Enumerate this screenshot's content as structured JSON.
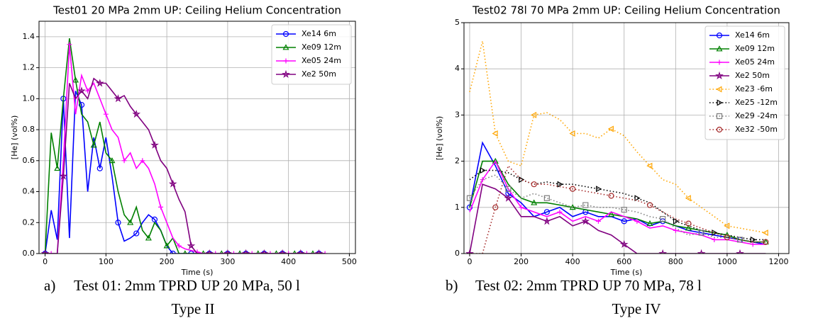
{
  "chart_data": [
    {
      "type": "line",
      "title": "Test01 20 MPa 2mm UP: Ceiling Helium Concentration",
      "x_label": "Time (s)",
      "y_label": "[He] (vol%)",
      "x": [
        0,
        10,
        20,
        30,
        40,
        50,
        60,
        70,
        80,
        90,
        100,
        110,
        120,
        130,
        140,
        150,
        160,
        170,
        180,
        190,
        200,
        210,
        220,
        230,
        240,
        250,
        260,
        270,
        280,
        290,
        300,
        310,
        320,
        330,
        340,
        350,
        360,
        370,
        380,
        390,
        400,
        410,
        420,
        430,
        440,
        450,
        460
      ],
      "series": [
        {
          "name": "Xe14 6m",
          "color": "#0000ff",
          "marker": "o",
          "linestyle": "solid",
          "values": [
            0,
            0.28,
            0.09,
            1.0,
            0.1,
            1.05,
            0.96,
            0.4,
            0.75,
            0.55,
            0.75,
            0.5,
            0.2,
            0.08,
            0.1,
            0.13,
            0.2,
            0.25,
            0.22,
            0.15,
            0.05,
            0,
            0,
            0,
            0,
            0,
            0,
            0,
            0,
            0,
            0,
            0,
            0,
            0,
            0,
            0,
            0,
            0,
            0,
            0,
            0,
            0,
            0,
            0,
            0,
            0,
            0
          ]
        },
        {
          "name": "Xe09 12m",
          "color": "#008000",
          "marker": "^",
          "linestyle": "solid",
          "values": [
            0,
            0.78,
            0.55,
            1.0,
            1.39,
            1.12,
            0.9,
            0.85,
            0.7,
            0.85,
            0.65,
            0.6,
            0.4,
            0.25,
            0.2,
            0.3,
            0.15,
            0.1,
            0.2,
            0.15,
            0.05,
            0.1,
            0,
            0,
            0,
            0,
            0,
            0,
            0,
            0,
            0,
            0,
            0,
            0,
            0,
            0,
            0,
            0,
            0,
            0,
            0,
            0,
            0,
            0,
            0,
            0,
            0
          ]
        },
        {
          "name": "Xe05 24m",
          "color": "#ff00ff",
          "marker": "+",
          "linestyle": "solid",
          "values": [
            0,
            0,
            0,
            0.6,
            1.35,
            0.9,
            1.15,
            1.05,
            1.1,
            1.0,
            0.9,
            0.8,
            0.75,
            0.6,
            0.65,
            0.55,
            0.6,
            0.55,
            0.45,
            0.3,
            0.2,
            0.1,
            0.05,
            0.03,
            0.02,
            0.01,
            0,
            0,
            0,
            0,
            0,
            0,
            0,
            0,
            0,
            0,
            0,
            0,
            0,
            0,
            0,
            0,
            0,
            0,
            0,
            0,
            0
          ]
        },
        {
          "name": "Xe2 50m",
          "color": "#800080",
          "marker": "*",
          "linestyle": "solid",
          "values": [
            0,
            0,
            0,
            0.5,
            1.1,
            1.0,
            1.05,
            1.0,
            1.13,
            1.1,
            1.1,
            1.05,
            1.0,
            1.02,
            0.95,
            0.9,
            0.85,
            0.8,
            0.7,
            0.6,
            0.55,
            0.45,
            0.35,
            0.27,
            0.05,
            0,
            0,
            0,
            0,
            0,
            0,
            0,
            0,
            0,
            0,
            0,
            0,
            0,
            0,
            0,
            0,
            0,
            0,
            0,
            0,
            0,
            0
          ]
        }
      ],
      "xlim": [
        -10,
        510
      ],
      "ylim": [
        0,
        1.5
      ],
      "xticks": [
        0,
        100,
        200,
        300,
        400,
        500
      ],
      "yticks": [
        {
          "value": 0,
          "label": "0.0"
        },
        {
          "value": 0.2,
          "label": "0.2"
        },
        {
          "value": 0.4,
          "label": "0.4"
        },
        {
          "value": 0.6,
          "label": "0.6"
        },
        {
          "value": 0.8,
          "label": "0.8"
        },
        {
          "value": 1.0,
          "label": "1.0"
        },
        {
          "value": 1.2,
          "label": "1.2"
        },
        {
          "value": 1.4,
          "label": "1.4"
        }
      ],
      "grid": true,
      "legend": "upper right",
      "caption": {
        "marker": "a)",
        "lines": [
          "Test 01: 2mm TPRD UP 20 MPa, 50 l",
          "Type II"
        ]
      }
    },
    {
      "type": "line",
      "title": "Test02 78l 70 MPa 2mm UP: Ceiling Helium Concentration",
      "x_label": "Time (s)",
      "y_label": "[He] (vol%)",
      "x": [
        0,
        50,
        100,
        150,
        200,
        250,
        300,
        350,
        400,
        450,
        500,
        550,
        600,
        650,
        700,
        750,
        800,
        850,
        900,
        950,
        1000,
        1050,
        1100,
        1150
      ],
      "series": [
        {
          "name": "Xe14 6m",
          "color": "#0000ff",
          "marker": "o",
          "linestyle": "solid",
          "values": [
            1.0,
            2.4,
            1.9,
            1.3,
            1.1,
            0.8,
            0.9,
            1.0,
            0.8,
            0.9,
            0.8,
            0.8,
            0.7,
            0.75,
            0.6,
            0.7,
            0.6,
            0.5,
            0.45,
            0.4,
            0.35,
            0.3,
            0.25,
            0.2
          ]
        },
        {
          "name": "Xe09 12m",
          "color": "#008000",
          "marker": "^",
          "linestyle": "solid",
          "values": [
            1.0,
            2.0,
            2.0,
            1.5,
            1.2,
            1.1,
            1.1,
            1.05,
            1.0,
            0.95,
            0.9,
            0.85,
            0.8,
            0.75,
            0.65,
            0.7,
            0.6,
            0.55,
            0.5,
            0.45,
            0.4,
            0.3,
            0.25,
            0.25
          ]
        },
        {
          "name": "Xe05 24m",
          "color": "#ff00ff",
          "marker": "+",
          "linestyle": "solid",
          "values": [
            0.9,
            1.6,
            2.0,
            1.4,
            1.0,
            0.9,
            0.8,
            0.9,
            0.7,
            0.8,
            0.7,
            0.9,
            0.8,
            0.7,
            0.55,
            0.6,
            0.5,
            0.45,
            0.4,
            0.3,
            0.3,
            0.25,
            0.2,
            0.2
          ]
        },
        {
          "name": "Xe2 50m",
          "color": "#800080",
          "marker": "*",
          "linestyle": "solid",
          "values": [
            0,
            1.5,
            1.4,
            1.2,
            0.8,
            0.8,
            0.7,
            0.8,
            0.6,
            0.7,
            0.5,
            0.4,
            0.2,
            0,
            0,
            0,
            0,
            0,
            0,
            0,
            0,
            0,
            0,
            0
          ]
        },
        {
          "name": "Xe23 -6m",
          "color": "#ffa500",
          "marker": "<",
          "linestyle": "dotted",
          "values": [
            3.5,
            4.6,
            2.6,
            2.0,
            1.9,
            3.0,
            3.05,
            2.9,
            2.6,
            2.6,
            2.5,
            2.7,
            2.55,
            2.2,
            1.9,
            1.6,
            1.5,
            1.2,
            1.0,
            0.8,
            0.6,
            0.55,
            0.5,
            0.45
          ]
        },
        {
          "name": "Xe25 -12m",
          "color": "#000000",
          "marker": ">",
          "linestyle": "dotted",
          "values": [
            1.6,
            1.8,
            1.8,
            1.75,
            1.6,
            1.5,
            1.55,
            1.5,
            1.5,
            1.45,
            1.4,
            1.35,
            1.3,
            1.2,
            1.1,
            0.9,
            0.7,
            0.6,
            0.5,
            0.45,
            0.4,
            0.35,
            0.3,
            0.3
          ]
        },
        {
          "name": "Xe29 -24m",
          "color": "#808080",
          "marker": "s",
          "linestyle": "dotted",
          "values": [
            1.2,
            1.6,
            1.7,
            1.4,
            1.2,
            1.3,
            1.2,
            1.1,
            1.0,
            1.05,
            1.0,
            1.0,
            0.95,
            0.9,
            0.8,
            0.75,
            0.55,
            0.4,
            0.45,
            0.35,
            0.35,
            0.3,
            0.25,
            0.25
          ]
        },
        {
          "name": "Xe32 -50m",
          "color": "#a52a2a",
          "marker": "o",
          "linestyle": "dotted",
          "values": [
            0,
            0,
            1.0,
            1.9,
            1.6,
            1.5,
            1.5,
            1.45,
            1.4,
            1.35,
            1.3,
            1.25,
            1.2,
            1.15,
            1.05,
            0.9,
            0.75,
            0.65,
            0.55,
            0.45,
            0.35,
            0.3,
            0.25,
            0.25
          ]
        }
      ],
      "xlim": [
        -22,
        1240
      ],
      "ylim": [
        0,
        5
      ],
      "xticks": [
        0,
        200,
        400,
        600,
        800,
        1000,
        1200
      ],
      "yticks": [
        0,
        1,
        2,
        3,
        4,
        5
      ],
      "grid": true,
      "legend": "upper right",
      "caption": {
        "marker": "b)",
        "lines": [
          "Test 02: 2mm TPRD UP 70 MPa, 78 l",
          "Type IV"
        ]
      }
    }
  ]
}
